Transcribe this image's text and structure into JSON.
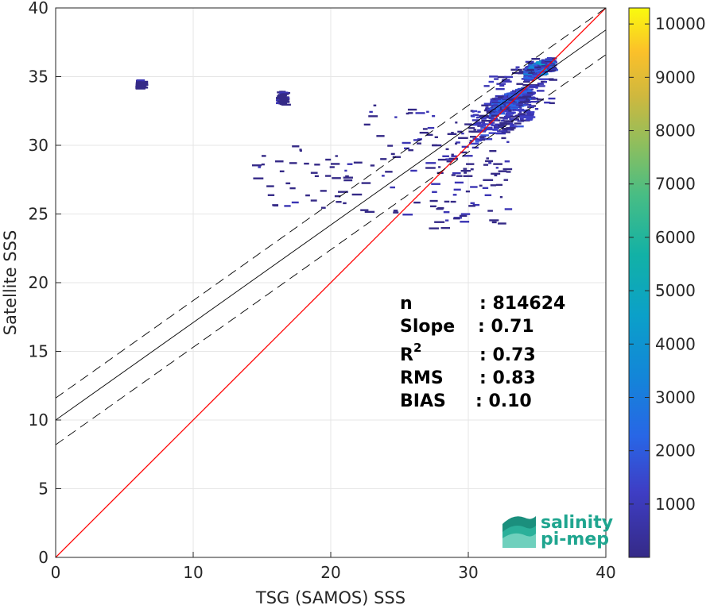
{
  "chart_data": {
    "type": "heatmap",
    "xlabel": "TSG (SAMOS) SSS",
    "ylabel": "Satellite SSS",
    "xlim": [
      0,
      40
    ],
    "ylim": [
      0,
      40
    ],
    "xticks": [
      0,
      10,
      20,
      30,
      40
    ],
    "yticks": [
      0,
      5,
      10,
      15,
      20,
      25,
      30,
      35,
      40
    ],
    "grid": true,
    "colorbar": {
      "ticks": [
        1000,
        2000,
        3000,
        4000,
        5000,
        6000,
        7000,
        8000,
        9000,
        10000
      ],
      "range": [
        1,
        10300
      ],
      "colormap": "parula"
    },
    "lines": [
      {
        "name": "identity",
        "slope": 1,
        "intercept": 0,
        "color": "#ff0000",
        "style": "solid"
      },
      {
        "name": "fit",
        "slope": 0.71,
        "intercept": 10.0,
        "color": "#000000",
        "style": "solid"
      },
      {
        "name": "fit-upper",
        "slope": 0.71,
        "intercept": 11.6,
        "color": "#000000",
        "style": "dashed"
      },
      {
        "name": "fit-lower",
        "slope": 0.71,
        "intercept": 8.2,
        "color": "#000000",
        "style": "dashed"
      }
    ],
    "density_regions": [
      {
        "x": [
          31,
          36
        ],
        "y": [
          30,
          36.5
        ],
        "level": 0.06
      },
      {
        "x": [
          30,
          34.5
        ],
        "y": [
          29,
          33.5
        ],
        "level": 0.12
      },
      {
        "x": [
          31.5,
          34
        ],
        "y": [
          31.5,
          33.5
        ],
        "level": 0.22
      },
      {
        "x": [
          34,
          35.8
        ],
        "y": [
          34.2,
          35.8
        ],
        "level": 0.3
      },
      {
        "x": [
          27,
          33
        ],
        "y": [
          24,
          31
        ],
        "level": 0.03
      },
      {
        "x": [
          22,
          30
        ],
        "y": [
          25,
          33
        ],
        "level": 0.02
      },
      {
        "x": [
          14,
          22
        ],
        "y": [
          25.5,
          30
        ],
        "level": 0.01
      },
      {
        "x": [
          16,
          16.5
        ],
        "y": [
          33,
          34
        ],
        "level": 0.01
      },
      {
        "x": [
          5.8,
          6
        ],
        "y": [
          34.2,
          34.8
        ],
        "level": 0.01
      }
    ],
    "stats": {
      "n_label": "n",
      "n_value": ": 814624",
      "slope_label": "Slope",
      "slope_value": ": 0.71",
      "r2_label": "R",
      "r2_sup": "2",
      "r2_value": ": 0.73",
      "rms_label": "RMS",
      "rms_value": ": 0.83",
      "bias_label": "BIAS",
      "bias_value": ": 0.10"
    }
  },
  "logo": {
    "line1": "salinity",
    "line2": "pi-mep"
  },
  "colors": {
    "grid": "#e6e6e6",
    "axis": "#262626",
    "identity": "#ff0000",
    "fit": "#000000",
    "logo": "#1fa58f"
  }
}
